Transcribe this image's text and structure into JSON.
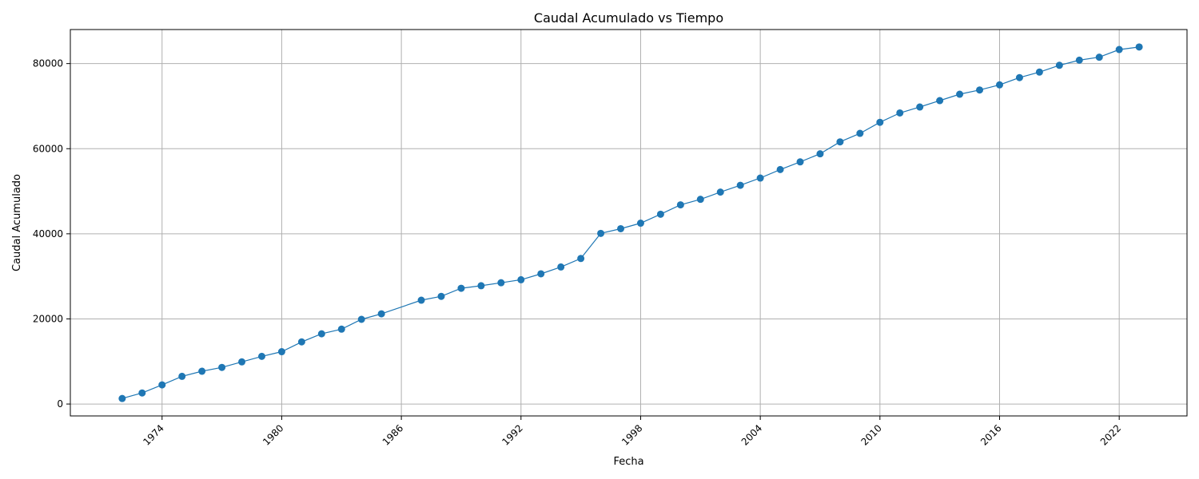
{
  "chart_data": {
    "type": "line",
    "title": "Caudal Acumulado vs Tiempo",
    "xlabel": "Fecha",
    "ylabel": "Caudal Acumulado",
    "x_tick_labels": [
      "1974",
      "1980",
      "1986",
      "1992",
      "1998",
      "2004",
      "2010",
      "2016",
      "2022"
    ],
    "y_tick_labels": [
      "0",
      "20000",
      "40000",
      "60000",
      "80000"
    ],
    "y_ticks": [
      0,
      20000,
      40000,
      60000,
      80000
    ],
    "xlim": [
      1969.4,
      2025.4
    ],
    "ylim": [
      -2800,
      88000
    ],
    "grid": true,
    "color": "#1f77b4",
    "series": [
      {
        "x": [
          1972.0,
          1973.0,
          1974.0,
          1975.0,
          1976.0,
          1977.0,
          1978.0,
          1979.0,
          1980.0,
          1981.0,
          1982.0,
          1983.0,
          1984.0,
          1985.0,
          1987.0,
          1988.0,
          1989.0,
          1990.0,
          1991.0,
          1992.0,
          1993.0,
          1994.0,
          1995.0,
          1996.0,
          1997.0,
          1998.0,
          1999.0,
          2000.0,
          2001.0,
          2002.0,
          2003.0,
          2004.0,
          2005.0,
          2006.0,
          2007.0,
          2008.0,
          2009.0,
          2010.0,
          2011.0,
          2012.0,
          2013.0,
          2014.0,
          2015.0,
          2016.0,
          2017.0,
          2018.0,
          2019.0,
          2020.0,
          2021.0,
          2022.0,
          2023.0
        ],
        "y": [
          1300,
          2600,
          4500,
          6500,
          7700,
          8600,
          9900,
          11200,
          12300,
          14600,
          16500,
          17600,
          19900,
          21200,
          24400,
          25300,
          27200,
          27800,
          28500,
          29200,
          30600,
          32200,
          34200,
          40100,
          41200,
          42500,
          44600,
          46800,
          48100,
          49800,
          51400,
          53100,
          55100,
          56900,
          58800,
          61600,
          63600,
          66200,
          68400,
          69800,
          71300,
          72800,
          73800,
          75000,
          76700,
          78000,
          79600,
          80800,
          81500,
          83300,
          83900
        ]
      }
    ]
  }
}
